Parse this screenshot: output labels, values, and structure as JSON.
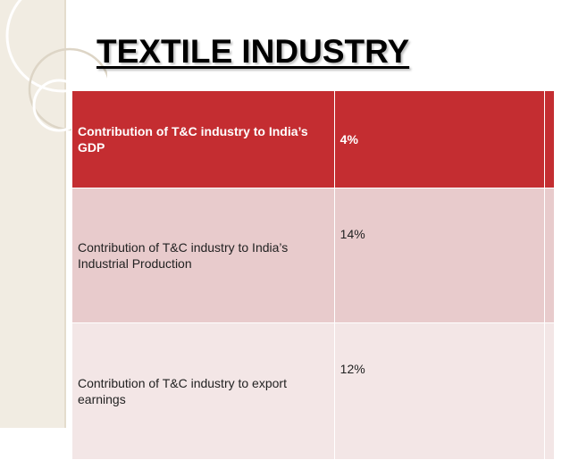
{
  "slide": {
    "title": "TEXTILE INDUSTRY"
  },
  "table": {
    "rows": [
      {
        "label": "Contribution of T&C industry to India’s GDP",
        "value": "4%"
      },
      {
        "label": " Contribution of T&C industry to India’s Industrial Production",
        "value": "14%"
      },
      {
        "label": " Contribution of T&C industry to export earnings",
        "value": "12%"
      }
    ]
  },
  "colors": {
    "header_row": "#c42d31",
    "row_1": "#e8cbcc",
    "row_2": "#f3e6e6",
    "left_strip": "#f1ece2"
  }
}
